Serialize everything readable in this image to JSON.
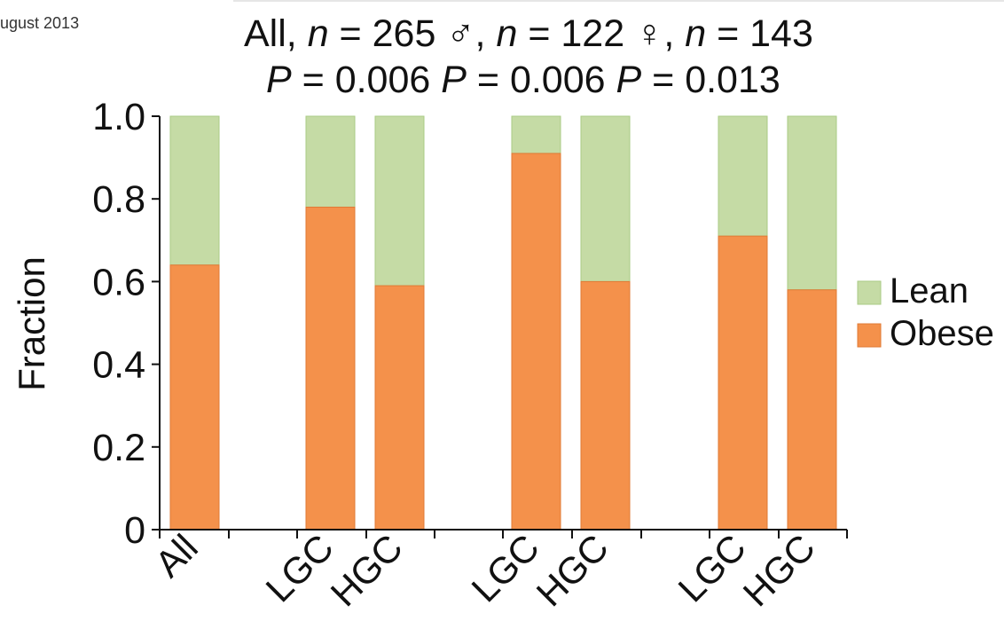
{
  "header": {
    "date": "ugust 2013"
  },
  "chart_data": {
    "type": "bar",
    "stacked": true,
    "title_lines": [
      [
        "All, ",
        {
          "i": "n"
        },
        " = 265  ♂, ",
        {
          "i": "n"
        },
        " = 122 ♀, ",
        {
          "i": "n"
        },
        " = 143"
      ],
      [
        {
          "i": "P"
        },
        " = 0.006   ",
        {
          "i": "P"
        },
        " = 0.006  ",
        {
          "i": "P"
        },
        " = 0.013"
      ]
    ],
    "ylabel": "Fraction",
    "xlabel": "",
    "ylim": [
      0,
      1.0
    ],
    "yticks": [
      0,
      0.2,
      0.4,
      0.6,
      0.8,
      1.0
    ],
    "ytick_labels": [
      "0",
      "0.2",
      "0.4",
      "0.6",
      "0.8",
      "1.0"
    ],
    "categories": [
      "All",
      "LGC",
      "HGC",
      "LGC",
      "HGC",
      "LGC",
      "HGC"
    ],
    "groups": [
      "All",
      "♂",
      "♀"
    ],
    "series": [
      {
        "name": "Obese",
        "color": "#f4914b",
        "values": [
          0.64,
          0.78,
          0.59,
          0.91,
          0.6,
          0.71,
          0.58
        ]
      },
      {
        "name": "Lean",
        "color": "#c5dba5",
        "values": [
          0.36,
          0.22,
          0.41,
          0.09,
          0.4,
          0.29,
          0.42
        ]
      }
    ],
    "legend_order": [
      "Lean",
      "Obese"
    ],
    "legend_position": "right",
    "grid": false
  }
}
